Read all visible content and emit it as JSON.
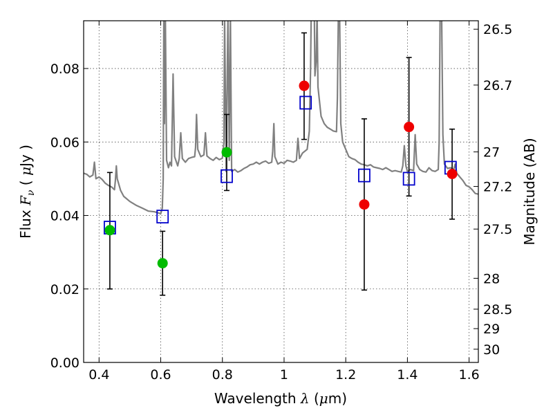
{
  "chart_data": {
    "type": "scatter",
    "title": "",
    "xlabel": "Wavelength  λ (μm)",
    "xlabel_parts": {
      "prefix": "Wavelength  ",
      "lambda": "λ",
      "open": " (",
      "mu": "μ",
      "unit": "m)"
    },
    "ylabel": "Flux  F_ν  ( μJy )",
    "ylabel_parts": {
      "prefix": "Flux  ",
      "F": "F",
      "nu": "ν",
      "open": "  (  ",
      "mu": "μ",
      "unit": "Jy )"
    },
    "y2label": "Magnitude (AB)",
    "xlim": [
      0.35,
      1.63
    ],
    "ylim": [
      0.0,
      0.093
    ],
    "grid": true,
    "x_ticks": [
      0.4,
      0.6,
      0.8,
      1.0,
      1.2,
      1.4,
      1.6
    ],
    "x_tick_labels": [
      "0.4",
      "0.6",
      "0.8",
      "1",
      "1.2",
      "1.4",
      "1.6"
    ],
    "y_ticks": [
      0.0,
      0.02,
      0.04,
      0.06,
      0.08
    ],
    "y_tick_labels": [
      "0.00",
      "0.02",
      "0.04",
      "0.06",
      "0.08"
    ],
    "mag_ticks": [
      {
        "flux": 0.0907,
        "label": "26.5"
      },
      {
        "flux": 0.0755,
        "label": "26.7"
      },
      {
        "flux": 0.0573,
        "label": "27"
      },
      {
        "flux": 0.0479,
        "label": "27.2"
      },
      {
        "flux": 0.0363,
        "label": "27.5"
      },
      {
        "flux": 0.0229,
        "label": "28"
      },
      {
        "flux": 0.0145,
        "label": "28.5"
      },
      {
        "flux": 0.0092,
        "label": "29"
      },
      {
        "flux": 0.0036,
        "label": "30"
      }
    ],
    "colors": {
      "model": "#808080",
      "green_points": "#00bb00",
      "red_points": "#ee0000",
      "squares": "#0000cc",
      "errorbars": "#000000"
    },
    "model_spectrum": [
      [
        0.35,
        0.0515
      ],
      [
        0.36,
        0.0512
      ],
      [
        0.37,
        0.0505
      ],
      [
        0.38,
        0.051
      ],
      [
        0.385,
        0.0545
      ],
      [
        0.39,
        0.05
      ],
      [
        0.4,
        0.0505
      ],
      [
        0.41,
        0.0498
      ],
      [
        0.42,
        0.0488
      ],
      [
        0.43,
        0.0482
      ],
      [
        0.44,
        0.0478
      ],
      [
        0.45,
        0.047
      ],
      [
        0.453,
        0.0495
      ],
      [
        0.456,
        0.0535
      ],
      [
        0.459,
        0.05
      ],
      [
        0.47,
        0.0468
      ],
      [
        0.48,
        0.0452
      ],
      [
        0.49,
        0.0445
      ],
      [
        0.5,
        0.0438
      ],
      [
        0.52,
        0.0428
      ],
      [
        0.54,
        0.042
      ],
      [
        0.56,
        0.0412
      ],
      [
        0.58,
        0.041
      ],
      [
        0.6,
        0.0405
      ],
      [
        0.605,
        0.042
      ],
      [
        0.608,
        0.05
      ],
      [
        0.61,
        0.095
      ],
      [
        0.612,
        0.065
      ],
      [
        0.615,
        0.095
      ],
      [
        0.619,
        0.055
      ],
      [
        0.625,
        0.053
      ],
      [
        0.63,
        0.0545
      ],
      [
        0.635,
        0.0535
      ],
      [
        0.64,
        0.0785
      ],
      [
        0.645,
        0.056
      ],
      [
        0.655,
        0.0535
      ],
      [
        0.66,
        0.0555
      ],
      [
        0.665,
        0.0625
      ],
      [
        0.67,
        0.0555
      ],
      [
        0.68,
        0.0545
      ],
      [
        0.69,
        0.0555
      ],
      [
        0.7,
        0.0558
      ],
      [
        0.71,
        0.056
      ],
      [
        0.713,
        0.0585
      ],
      [
        0.716,
        0.0675
      ],
      [
        0.72,
        0.058
      ],
      [
        0.73,
        0.056
      ],
      [
        0.74,
        0.0565
      ],
      [
        0.745,
        0.0625
      ],
      [
        0.75,
        0.0562
      ],
      [
        0.76,
        0.0555
      ],
      [
        0.77,
        0.055
      ],
      [
        0.78,
        0.0558
      ],
      [
        0.79,
        0.0552
      ],
      [
        0.8,
        0.0556
      ],
      [
        0.805,
        0.06
      ],
      [
        0.807,
        0.095
      ],
      [
        0.812,
        0.052
      ],
      [
        0.818,
        0.095
      ],
      [
        0.822,
        0.055
      ],
      [
        0.826,
        0.095
      ],
      [
        0.83,
        0.052
      ],
      [
        0.84,
        0.0525
      ],
      [
        0.85,
        0.0518
      ],
      [
        0.86,
        0.0522
      ],
      [
        0.87,
        0.0528
      ],
      [
        0.88,
        0.0532
      ],
      [
        0.89,
        0.0538
      ],
      [
        0.9,
        0.054
      ],
      [
        0.91,
        0.0545
      ],
      [
        0.92,
        0.054
      ],
      [
        0.93,
        0.0545
      ],
      [
        0.94,
        0.0548
      ],
      [
        0.95,
        0.0542
      ],
      [
        0.96,
        0.0545
      ],
      [
        0.963,
        0.0575
      ],
      [
        0.967,
        0.065
      ],
      [
        0.97,
        0.056
      ],
      [
        0.98,
        0.054
      ],
      [
        0.99,
        0.0545
      ],
      [
        1.0,
        0.0542
      ],
      [
        1.01,
        0.055
      ],
      [
        1.02,
        0.0548
      ],
      [
        1.03,
        0.0545
      ],
      [
        1.04,
        0.055
      ],
      [
        1.045,
        0.061
      ],
      [
        1.05,
        0.0555
      ],
      [
        1.06,
        0.057
      ],
      [
        1.075,
        0.058
      ],
      [
        1.082,
        0.063
      ],
      [
        1.086,
        0.08
      ],
      [
        1.088,
        0.095
      ],
      [
        1.098,
        0.095
      ],
      [
        1.1,
        0.078
      ],
      [
        1.104,
        0.082
      ],
      [
        1.107,
        0.095
      ],
      [
        1.11,
        0.075
      ],
      [
        1.12,
        0.067
      ],
      [
        1.13,
        0.065
      ],
      [
        1.14,
        0.064
      ],
      [
        1.15,
        0.0635
      ],
      [
        1.16,
        0.063
      ],
      [
        1.17,
        0.0628
      ],
      [
        1.173,
        0.072
      ],
      [
        1.176,
        0.095
      ],
      [
        1.18,
        0.095
      ],
      [
        1.184,
        0.065
      ],
      [
        1.19,
        0.06
      ],
      [
        1.2,
        0.058
      ],
      [
        1.21,
        0.056
      ],
      [
        1.22,
        0.0555
      ],
      [
        1.23,
        0.0552
      ],
      [
        1.24,
        0.0545
      ],
      [
        1.25,
        0.054
      ],
      [
        1.26,
        0.0538
      ],
      [
        1.27,
        0.0535
      ],
      [
        1.28,
        0.0538
      ],
      [
        1.29,
        0.0532
      ],
      [
        1.3,
        0.053
      ],
      [
        1.31,
        0.0528
      ],
      [
        1.32,
        0.0525
      ],
      [
        1.33,
        0.053
      ],
      [
        1.34,
        0.0525
      ],
      [
        1.35,
        0.052
      ],
      [
        1.36,
        0.0522
      ],
      [
        1.37,
        0.052
      ],
      [
        1.38,
        0.0518
      ],
      [
        1.385,
        0.0535
      ],
      [
        1.39,
        0.059
      ],
      [
        1.395,
        0.0535
      ],
      [
        1.4,
        0.052
      ],
      [
        1.41,
        0.0525
      ],
      [
        1.42,
        0.0522
      ],
      [
        1.425,
        0.062
      ],
      [
        1.43,
        0.054
      ],
      [
        1.44,
        0.0525
      ],
      [
        1.45,
        0.052
      ],
      [
        1.46,
        0.0518
      ],
      [
        1.47,
        0.053
      ],
      [
        1.48,
        0.0522
      ],
      [
        1.49,
        0.052
      ],
      [
        1.5,
        0.0525
      ],
      [
        1.503,
        0.06
      ],
      [
        1.506,
        0.095
      ],
      [
        1.511,
        0.095
      ],
      [
        1.515,
        0.062
      ],
      [
        1.52,
        0.054
      ],
      [
        1.53,
        0.0528
      ],
      [
        1.54,
        0.053
      ],
      [
        1.55,
        0.0525
      ],
      [
        1.555,
        0.054
      ],
      [
        1.56,
        0.0515
      ],
      [
        1.57,
        0.0505
      ],
      [
        1.58,
        0.0495
      ],
      [
        1.59,
        0.0482
      ],
      [
        1.6,
        0.0478
      ],
      [
        1.61,
        0.047
      ],
      [
        1.62,
        0.046
      ],
      [
        1.63,
        0.0458
      ]
    ],
    "squares": [
      {
        "x": 0.435,
        "y": 0.0367
      },
      {
        "x": 0.606,
        "y": 0.0397
      },
      {
        "x": 0.814,
        "y": 0.0507
      },
      {
        "x": 1.07,
        "y": 0.0707
      },
      {
        "x": 1.26,
        "y": 0.0509
      },
      {
        "x": 1.405,
        "y": 0.05
      },
      {
        "x": 1.54,
        "y": 0.053
      }
    ],
    "green_points": [
      {
        "x": 0.435,
        "y": 0.036,
        "ylo": 0.02,
        "yhi": 0.0517
      },
      {
        "x": 0.606,
        "y": 0.027,
        "ylo": 0.0183,
        "yhi": 0.0357
      },
      {
        "x": 0.814,
        "y": 0.0572,
        "ylo": 0.0468,
        "yhi": 0.0675
      }
    ],
    "red_points": [
      {
        "x": 1.065,
        "y": 0.0753,
        "ylo": 0.0607,
        "yhi": 0.0897
      },
      {
        "x": 1.26,
        "y": 0.043,
        "ylo": 0.0197,
        "yhi": 0.0663
      },
      {
        "x": 1.405,
        "y": 0.0641,
        "ylo": 0.0453,
        "yhi": 0.083
      },
      {
        "x": 1.545,
        "y": 0.0513,
        "ylo": 0.039,
        "yhi": 0.0635
      }
    ]
  }
}
